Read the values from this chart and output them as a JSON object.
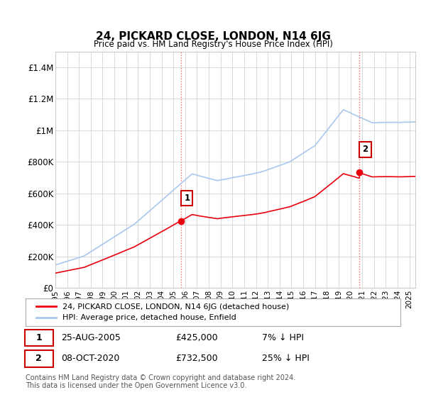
{
  "title": "24, PICKARD CLOSE, LONDON, N14 6JG",
  "subtitle": "Price paid vs. HM Land Registry's House Price Index (HPI)",
  "ylabel_ticks": [
    "£0",
    "£200K",
    "£400K",
    "£600K",
    "£800K",
    "£1M",
    "£1.2M",
    "£1.4M"
  ],
  "ylabel_values": [
    0,
    200000,
    400000,
    600000,
    800000,
    1000000,
    1200000,
    1400000
  ],
  "ylim": [
    0,
    1500000
  ],
  "xlim_start": 1995.0,
  "xlim_end": 2025.5,
  "line1_color": "#e8000d",
  "line2_color": "#a8c8f0",
  "purchase1_x": 2005.65,
  "purchase1_y": 425000,
  "purchase2_x": 2020.77,
  "purchase2_y": 732500,
  "vline_color": "#ff6666",
  "legend_label1": "24, PICKARD CLOSE, LONDON, N14 6JG (detached house)",
  "legend_label2": "HPI: Average price, detached house, Enfield",
  "table_row1": [
    "1",
    "25-AUG-2005",
    "£425,000",
    "7% ↓ HPI"
  ],
  "table_row2": [
    "2",
    "08-OCT-2020",
    "£732,500",
    "25% ↓ HPI"
  ],
  "footer": "Contains HM Land Registry data © Crown copyright and database right 2024.\nThis data is licensed under the Open Government Licence v3.0.",
  "bg_color": "#ffffff",
  "grid_color": "#cccccc",
  "x_ticks": [
    1995,
    1996,
    1997,
    1998,
    1999,
    2000,
    2001,
    2002,
    2003,
    2004,
    2005,
    2006,
    2007,
    2008,
    2009,
    2010,
    2011,
    2012,
    2013,
    2014,
    2015,
    2016,
    2017,
    2018,
    2019,
    2020,
    2021,
    2022,
    2023,
    2024,
    2025
  ]
}
